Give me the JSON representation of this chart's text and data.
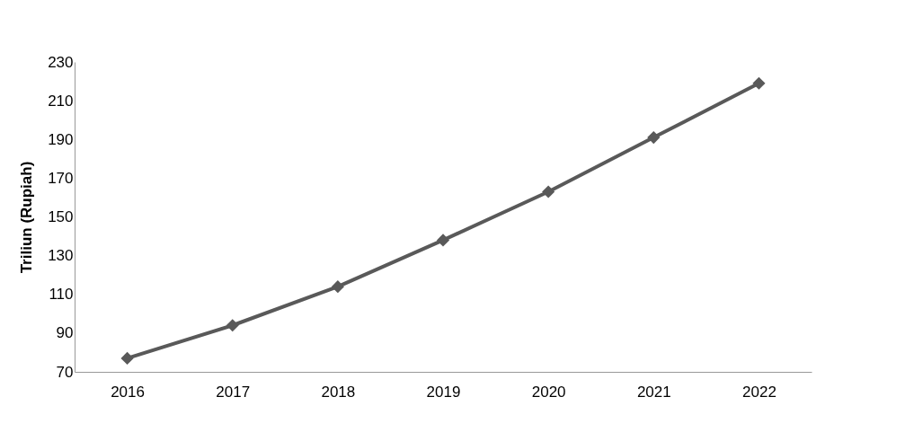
{
  "chart_data": {
    "type": "line",
    "ylabel": "Triliun (Rupiah)",
    "categories": [
      "2016",
      "2017",
      "2018",
      "2019",
      "2020",
      "2021",
      "2022"
    ],
    "series": [
      {
        "color": "#595959",
        "values": [
          77,
          94,
          114,
          138,
          163,
          191,
          219
        ]
      }
    ],
    "ylim": [
      70,
      230
    ],
    "yticks": [
      70,
      90,
      110,
      130,
      150,
      170,
      190,
      210,
      230
    ],
    "grid": false,
    "marker": "diamond",
    "line_style": "solid"
  }
}
